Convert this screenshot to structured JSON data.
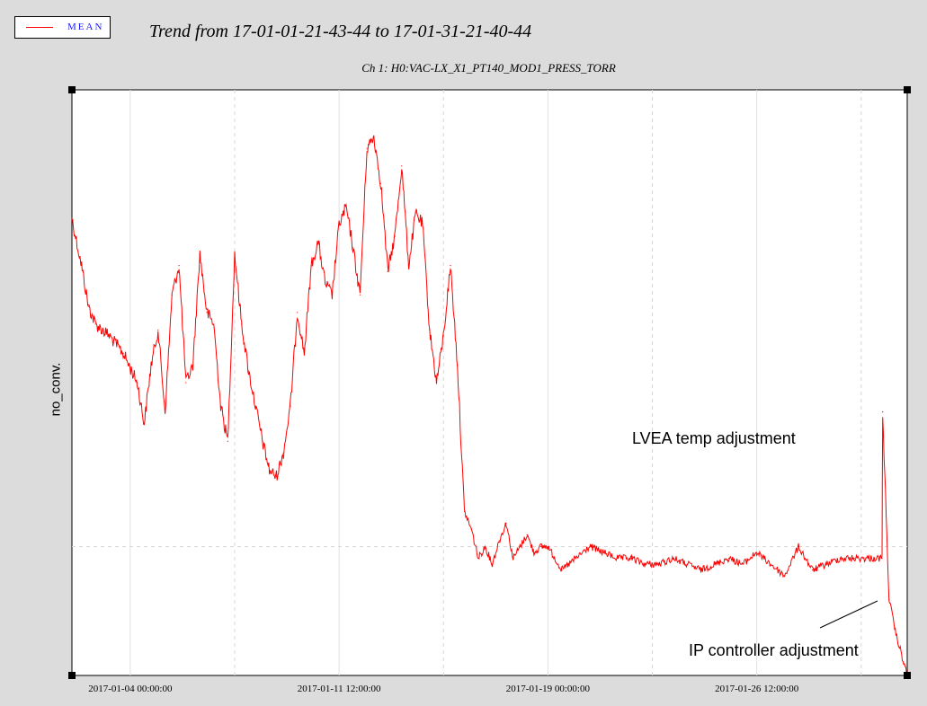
{
  "legend": {
    "label": "MEAN",
    "color": "#ff0000"
  },
  "header": {
    "title": "Trend from 17-01-01-21-43-44 to 17-01-31-21-40-44",
    "subtitle": "Ch 1: H0:VAC-LX_X1_PT140_MOD1_PRESS_TORR"
  },
  "annotations": {
    "lvea": "LVEA temp adjustment",
    "ip": "IP controller adjustment"
  },
  "chart_data": {
    "type": "line",
    "title": "Trend from 17-01-01-21-43-44 to 17-01-31-21-40-44",
    "subtitle": "Ch 1: H0:VAC-LX_X1_PT140_MOD1_PRESS_TORR",
    "ylabel": "no_conv.",
    "xlabel": "",
    "xlim": [
      "2017-01-01 21:43:44",
      "2017-01-31 21:40:44"
    ],
    "ylim": [
      0,
      100
    ],
    "grid": true,
    "legend_position": "top-left",
    "x_ticks": [
      "2017-01-04 00:00:00",
      "2017-01-11 12:00:00",
      "2017-01-19 00:00:00",
      "2017-01-26 12:00:00"
    ],
    "series": [
      {
        "name": "MEAN",
        "color": "#ff0000",
        "x": [
          "2017-01-01 21:43:44",
          "2017-01-02 06:00:00",
          "2017-01-02 12:00:00",
          "2017-01-02 18:00:00",
          "2017-01-03 06:00:00",
          "2017-01-03 18:00:00",
          "2017-01-04 06:00:00",
          "2017-01-04 12:00:00",
          "2017-01-04 18:00:00",
          "2017-01-05 00:00:00",
          "2017-01-05 06:00:00",
          "2017-01-05 12:00:00",
          "2017-01-05 18:00:00",
          "2017-01-06 00:00:00",
          "2017-01-06 06:00:00",
          "2017-01-06 12:00:00",
          "2017-01-06 18:00:00",
          "2017-01-07 00:00:00",
          "2017-01-07 06:00:00",
          "2017-01-07 12:00:00",
          "2017-01-07 18:00:00",
          "2017-01-08 00:00:00",
          "2017-01-08 06:00:00",
          "2017-01-08 12:00:00",
          "2017-01-08 18:00:00",
          "2017-01-09 00:00:00",
          "2017-01-09 06:00:00",
          "2017-01-09 12:00:00",
          "2017-01-09 18:00:00",
          "2017-01-10 00:00:00",
          "2017-01-10 06:00:00",
          "2017-01-10 12:00:00",
          "2017-01-10 18:00:00",
          "2017-01-11 00:00:00",
          "2017-01-11 06:00:00",
          "2017-01-11 12:00:00",
          "2017-01-11 18:00:00",
          "2017-01-12 00:00:00",
          "2017-01-12 06:00:00",
          "2017-01-12 12:00:00",
          "2017-01-12 18:00:00",
          "2017-01-13 00:00:00",
          "2017-01-13 06:00:00",
          "2017-01-13 12:00:00",
          "2017-01-13 18:00:00",
          "2017-01-14 00:00:00",
          "2017-01-14 06:00:00",
          "2017-01-14 12:00:00",
          "2017-01-14 18:00:00",
          "2017-01-15 00:00:00",
          "2017-01-15 06:00:00",
          "2017-01-15 12:00:00",
          "2017-01-15 18:00:00",
          "2017-01-16 00:00:00",
          "2017-01-16 06:00:00",
          "2017-01-16 12:00:00",
          "2017-01-16 18:00:00",
          "2017-01-17 00:00:00",
          "2017-01-17 06:00:00",
          "2017-01-17 12:00:00",
          "2017-01-17 18:00:00",
          "2017-01-18 00:00:00",
          "2017-01-18 06:00:00",
          "2017-01-18 12:00:00",
          "2017-01-18 18:00:00",
          "2017-01-19 00:00:00",
          "2017-01-19 12:00:00",
          "2017-01-20 00:00:00",
          "2017-01-20 12:00:00",
          "2017-01-21 00:00:00",
          "2017-01-21 12:00:00",
          "2017-01-22 00:00:00",
          "2017-01-22 12:00:00",
          "2017-01-23 00:00:00",
          "2017-01-23 12:00:00",
          "2017-01-24 00:00:00",
          "2017-01-24 12:00:00",
          "2017-01-25 00:00:00",
          "2017-01-25 12:00:00",
          "2017-01-26 00:00:00",
          "2017-01-26 12:00:00",
          "2017-01-27 00:00:00",
          "2017-01-27 12:00:00",
          "2017-01-28 00:00:00",
          "2017-01-28 12:00:00",
          "2017-01-29 00:00:00",
          "2017-01-29 12:00:00",
          "2017-01-30 00:00:00",
          "2017-01-30 12:00:00",
          "2017-01-31 00:00:00",
          "2017-01-31 00:30:00",
          "2017-01-31 06:00:00",
          "2017-01-31 12:00:00",
          "2017-01-31 21:40:44"
        ],
        "values": [
          78,
          70,
          63,
          60,
          58,
          55,
          50,
          43,
          53,
          59,
          45,
          65,
          70,
          50,
          53,
          72,
          62,
          60,
          46,
          40,
          72,
          60,
          52,
          46,
          40,
          35,
          34,
          38,
          46,
          62,
          55,
          70,
          74,
          67,
          65,
          77,
          80,
          73,
          65,
          90,
          92,
          84,
          69,
          75,
          87,
          70,
          79,
          77,
          59,
          50,
          58,
          70,
          53,
          28,
          25,
          20,
          22,
          19,
          23,
          26,
          20,
          22,
          24,
          21,
          22,
          22,
          18,
          20,
          22,
          21,
          20,
          20,
          19,
          19,
          20,
          19,
          18,
          19,
          20,
          19,
          21,
          19,
          17,
          22,
          18,
          19,
          20,
          20,
          20,
          20,
          45,
          13,
          7,
          0
        ]
      }
    ]
  }
}
